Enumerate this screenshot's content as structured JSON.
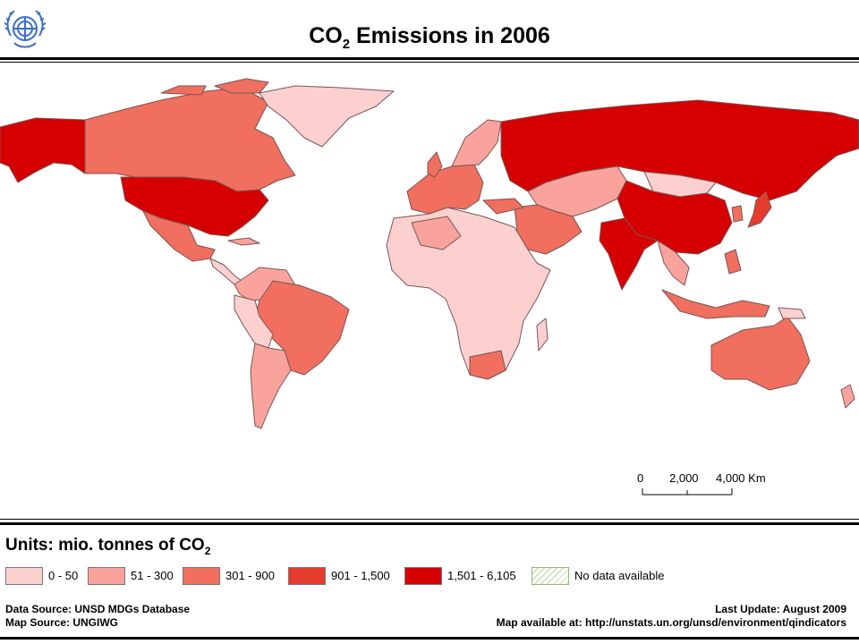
{
  "title": {
    "main": "CO",
    "sub": "2",
    "rest": " Emissions in 2006"
  },
  "scale_bar": {
    "labels": [
      "0",
      "2,000",
      "4,000 Km"
    ]
  },
  "units": {
    "main": "Units: mio. tonnes of CO",
    "sub": "2"
  },
  "legend": [
    {
      "label": "0 - 50",
      "color": "#fdd0d0"
    },
    {
      "label": "51 - 300",
      "color": "#f9a39c"
    },
    {
      "label": "301 - 900",
      "color": "#f06f5e"
    },
    {
      "label": "901 - 1,500",
      "color": "#e53c2e"
    },
    {
      "label": "1,501 - 6,105",
      "color": "#d60000"
    },
    {
      "label": "No data available",
      "color": "#ffffff",
      "pattern": "hatched"
    }
  ],
  "footer": {
    "data_source": "Data Source: UNSD MDGs Database",
    "map_source": "Map Source: UNGIWG",
    "last_update": "Last Update: August 2009",
    "available": "Map available at: http://unstats.un.org/unsd/environment/qindicators"
  },
  "colors": {
    "border": "#7a5555",
    "ocean": "#ffffff"
  },
  "icons": {
    "logo": "un-emblem-icon"
  }
}
